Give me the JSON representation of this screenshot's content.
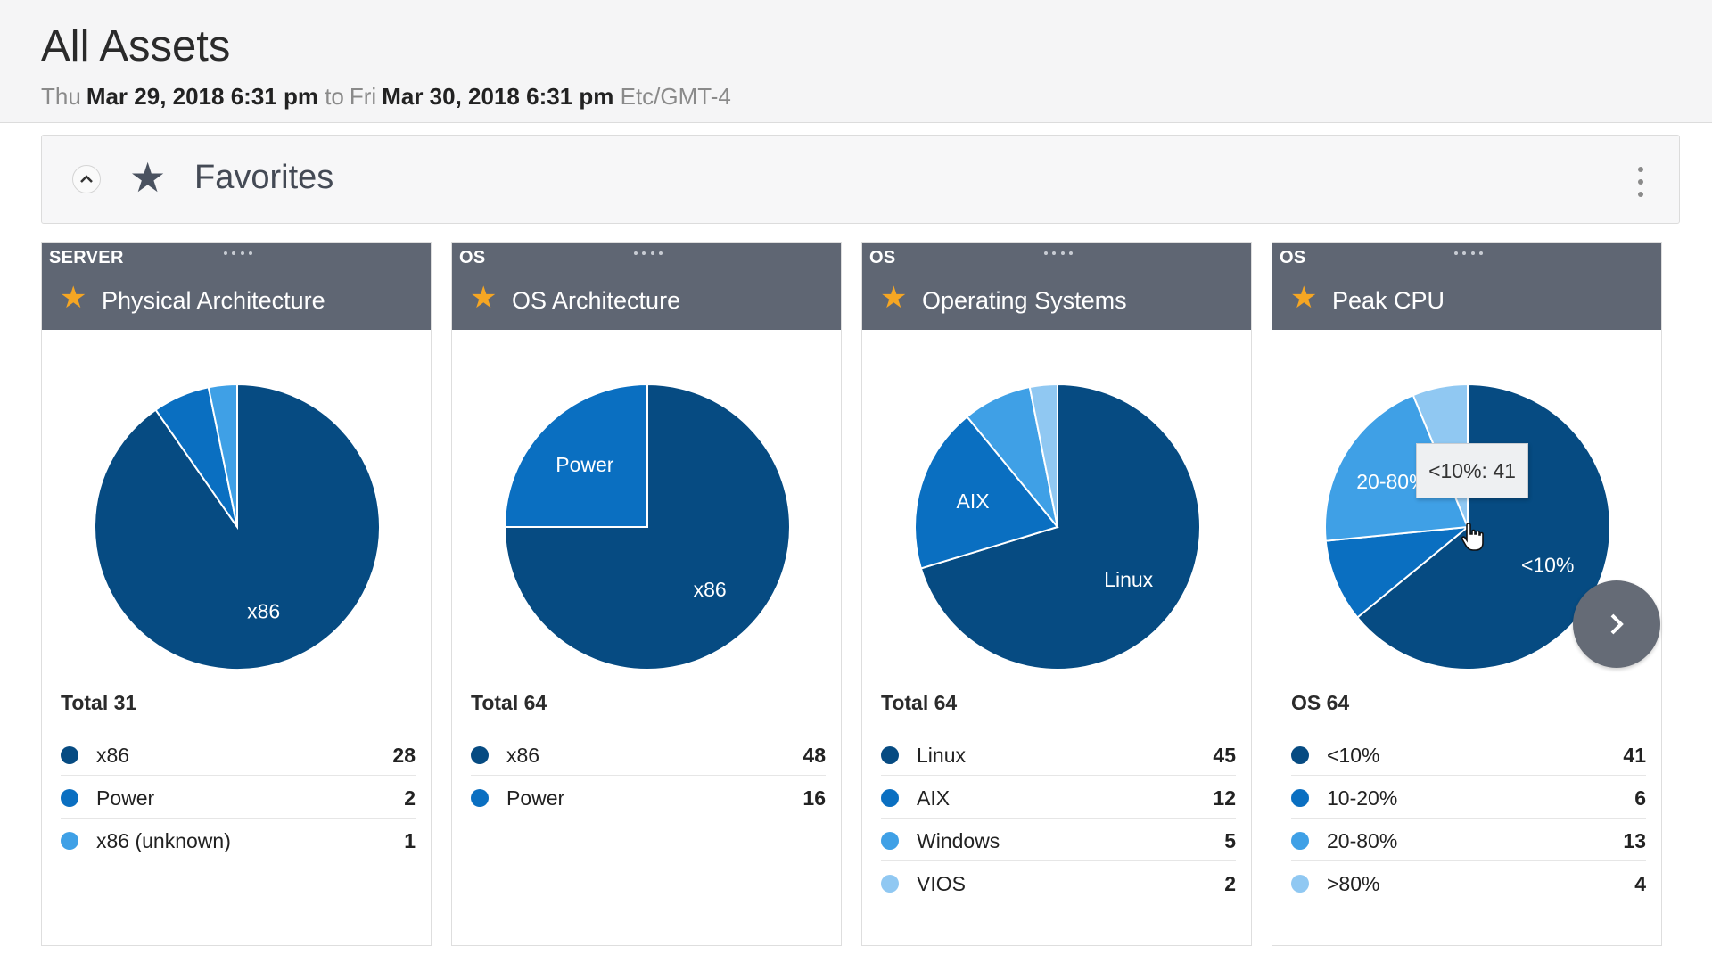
{
  "page": {
    "title": "All Assets",
    "date_from_day": "Thu",
    "date_from": "Mar 29, 2018 6:31 pm",
    "to_label": "to",
    "date_to_day": "Fri",
    "date_to": "Mar 30, 2018 6:31 pm",
    "timezone": "Etc/GMT-4"
  },
  "favorites": {
    "label": "Favorites"
  },
  "colors": {
    "dark": "#064b82",
    "medium": "#0a6fc1",
    "light": "#3fa0e6",
    "pale": "#90c8f2",
    "header": "#5f6673",
    "star": "#f5a623"
  },
  "cards": [
    {
      "category": "SERVER",
      "title": "Physical Architecture",
      "total_label": "Total 31",
      "legend": [
        {
          "label": "x86",
          "value": "28"
        },
        {
          "label": "Power",
          "value": "2"
        },
        {
          "label": "x86 (unknown)",
          "value": "1"
        }
      ]
    },
    {
      "category": "OS",
      "title": "OS Architecture",
      "total_label": "Total 64",
      "legend": [
        {
          "label": "x86",
          "value": "48"
        },
        {
          "label": "Power",
          "value": "16"
        }
      ]
    },
    {
      "category": "OS",
      "title": "Operating Systems",
      "total_label": "Total 64",
      "legend": [
        {
          "label": "Linux",
          "value": "45"
        },
        {
          "label": "AIX",
          "value": "12"
        },
        {
          "label": "Windows",
          "value": "5"
        },
        {
          "label": "VIOS",
          "value": "2"
        }
      ]
    },
    {
      "category": "OS",
      "title": "Peak CPU",
      "total_label": "OS 64",
      "legend": [
        {
          "label": "<10%",
          "value": "41"
        },
        {
          "label": "10-20%",
          "value": "6"
        },
        {
          "label": "20-80%",
          "value": "13"
        },
        {
          "label": ">80%",
          "value": "4"
        }
      ]
    }
  ],
  "tooltip": {
    "text": "<10%: 41"
  },
  "chart_data": [
    {
      "type": "pie",
      "categories": [
        "x86",
        "Power",
        "x86 (unknown)"
      ],
      "values": [
        28,
        2,
        1
      ],
      "slice_labels": [
        "x86",
        "",
        ""
      ]
    },
    {
      "type": "pie",
      "categories": [
        "x86",
        "Power"
      ],
      "values": [
        48,
        16
      ],
      "slice_labels": [
        "x86",
        "Power"
      ]
    },
    {
      "type": "pie",
      "categories": [
        "Linux",
        "AIX",
        "Windows",
        "VIOS"
      ],
      "values": [
        45,
        12,
        5,
        2
      ],
      "slice_labels": [
        "Linux",
        "AIX",
        "",
        ""
      ]
    },
    {
      "type": "pie",
      "categories": [
        "<10%",
        "10-20%",
        "20-80%",
        ">80%"
      ],
      "values": [
        41,
        6,
        13,
        4
      ],
      "slice_labels": [
        "<10%",
        "",
        "20-80%",
        ""
      ]
    }
  ]
}
